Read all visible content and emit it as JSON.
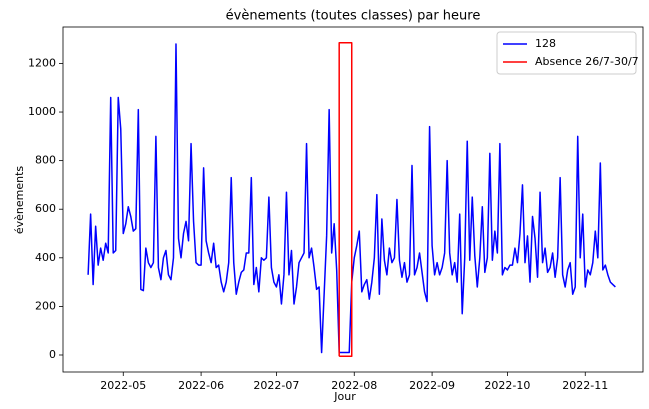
{
  "chart_data": {
    "type": "line",
    "title": "évènements (toutes classes) par heure",
    "xlabel": "Jour",
    "ylabel": "évènements",
    "xlim": [
      "2022-04-07",
      "2022-11-24"
    ],
    "xticks": [
      {
        "value": "2022-05-01",
        "label": "2022-05"
      },
      {
        "value": "2022-06-01",
        "label": "2022-06"
      },
      {
        "value": "2022-07-01",
        "label": "2022-07"
      },
      {
        "value": "2022-08-01",
        "label": "2022-08"
      },
      {
        "value": "2022-09-01",
        "label": "2022-09"
      },
      {
        "value": "2022-10-01",
        "label": "2022-10"
      },
      {
        "value": "2022-11-01",
        "label": "2022-11"
      }
    ],
    "ylim": [
      -70,
      1350
    ],
    "yticks": [
      0,
      200,
      400,
      600,
      800,
      1000,
      1200
    ],
    "grid": false,
    "legend": "upper right",
    "x": [
      "2022-04-17",
      "2022-04-18",
      "2022-04-19",
      "2022-04-20",
      "2022-04-21",
      "2022-04-22",
      "2022-04-23",
      "2022-04-24",
      "2022-04-25",
      "2022-04-26",
      "2022-04-27",
      "2022-04-28",
      "2022-04-29",
      "2022-04-30",
      "2022-05-01",
      "2022-05-02",
      "2022-05-03",
      "2022-05-04",
      "2022-05-05",
      "2022-05-06",
      "2022-05-07",
      "2022-05-08",
      "2022-05-09",
      "2022-05-10",
      "2022-05-11",
      "2022-05-12",
      "2022-05-13",
      "2022-05-14",
      "2022-05-15",
      "2022-05-16",
      "2022-05-17",
      "2022-05-18",
      "2022-05-19",
      "2022-05-20",
      "2022-05-21",
      "2022-05-22",
      "2022-05-23",
      "2022-05-24",
      "2022-05-25",
      "2022-05-26",
      "2022-05-27",
      "2022-05-28",
      "2022-05-29",
      "2022-05-30",
      "2022-05-31",
      "2022-06-01",
      "2022-06-02",
      "2022-06-03",
      "2022-06-04",
      "2022-06-05",
      "2022-06-06",
      "2022-06-07",
      "2022-06-08",
      "2022-06-09",
      "2022-06-10",
      "2022-06-11",
      "2022-06-12",
      "2022-06-13",
      "2022-06-14",
      "2022-06-15",
      "2022-06-16",
      "2022-06-17",
      "2022-06-18",
      "2022-06-19",
      "2022-06-20",
      "2022-06-21",
      "2022-06-22",
      "2022-06-23",
      "2022-06-24",
      "2022-06-25",
      "2022-06-26",
      "2022-06-27",
      "2022-06-28",
      "2022-06-29",
      "2022-06-30",
      "2022-07-01",
      "2022-07-02",
      "2022-07-03",
      "2022-07-04",
      "2022-07-05",
      "2022-07-06",
      "2022-07-07",
      "2022-07-08",
      "2022-07-09",
      "2022-07-10",
      "2022-07-11",
      "2022-07-12",
      "2022-07-13",
      "2022-07-14",
      "2022-07-15",
      "2022-07-16",
      "2022-07-17",
      "2022-07-18",
      "2022-07-19",
      "2022-07-20",
      "2022-07-21",
      "2022-07-22",
      "2022-07-23",
      "2022-07-24",
      "2022-07-25",
      "2022-07-26",
      "2022-07-27",
      "2022-07-28",
      "2022-07-29",
      "2022-07-30",
      "2022-07-31",
      "2022-08-01",
      "2022-08-02",
      "2022-08-03",
      "2022-08-04",
      "2022-08-05",
      "2022-08-06",
      "2022-08-07",
      "2022-08-08",
      "2022-08-09",
      "2022-08-10",
      "2022-08-11",
      "2022-08-12",
      "2022-08-13",
      "2022-08-14",
      "2022-08-15",
      "2022-08-16",
      "2022-08-17",
      "2022-08-18",
      "2022-08-19",
      "2022-08-20",
      "2022-08-21",
      "2022-08-22",
      "2022-08-23",
      "2022-08-24",
      "2022-08-25",
      "2022-08-26",
      "2022-08-27",
      "2022-08-28",
      "2022-08-29",
      "2022-08-30",
      "2022-08-31",
      "2022-09-01",
      "2022-09-02",
      "2022-09-03",
      "2022-09-04",
      "2022-09-05",
      "2022-09-06",
      "2022-09-07",
      "2022-09-08",
      "2022-09-09",
      "2022-09-10",
      "2022-09-11",
      "2022-09-12",
      "2022-09-13",
      "2022-09-14",
      "2022-09-15",
      "2022-09-16",
      "2022-09-17",
      "2022-09-18",
      "2022-09-19",
      "2022-09-20",
      "2022-09-21",
      "2022-09-22",
      "2022-09-23",
      "2022-09-24",
      "2022-09-25",
      "2022-09-26",
      "2022-09-27",
      "2022-09-28",
      "2022-09-29",
      "2022-09-30",
      "2022-10-01",
      "2022-10-02",
      "2022-10-03",
      "2022-10-04",
      "2022-10-05",
      "2022-10-06",
      "2022-10-07",
      "2022-10-08",
      "2022-10-09",
      "2022-10-10",
      "2022-10-11",
      "2022-10-12",
      "2022-10-13",
      "2022-10-14",
      "2022-10-15",
      "2022-10-16",
      "2022-10-17",
      "2022-10-18",
      "2022-10-19",
      "2022-10-20",
      "2022-10-21",
      "2022-10-22",
      "2022-10-23",
      "2022-10-24",
      "2022-10-25",
      "2022-10-26",
      "2022-10-27",
      "2022-10-28",
      "2022-10-29",
      "2022-10-30",
      "2022-10-31",
      "2022-11-01",
      "2022-11-02",
      "2022-11-03",
      "2022-11-04",
      "2022-11-05",
      "2022-11-06",
      "2022-11-07",
      "2022-11-08",
      "2022-11-09",
      "2022-11-10",
      "2022-11-11",
      "2022-11-12",
      "2022-11-13"
    ],
    "series": [
      {
        "name": "128",
        "color": "#0000ff",
        "values": [
          330,
          580,
          290,
          530,
          370,
          440,
          390,
          460,
          420,
          1060,
          420,
          430,
          1060,
          930,
          500,
          540,
          610,
          570,
          510,
          520,
          1010,
          270,
          265,
          440,
          380,
          360,
          380,
          900,
          360,
          310,
          400,
          430,
          330,
          310,
          400,
          1280,
          480,
          400,
          500,
          550,
          470,
          870,
          550,
          380,
          370,
          370,
          770,
          470,
          420,
          380,
          460,
          360,
          370,
          300,
          260,
          300,
          380,
          730,
          380,
          250,
          300,
          340,
          350,
          420,
          420,
          730,
          290,
          360,
          260,
          400,
          390,
          400,
          650,
          360,
          300,
          280,
          330,
          210,
          330,
          670,
          330,
          430,
          210,
          280,
          380,
          400,
          420,
          870,
          400,
          440,
          360,
          270,
          280,
          10,
          250,
          490,
          1010,
          420,
          540,
          350,
          10,
          10,
          10,
          10,
          10,
          300,
          400,
          450,
          510,
          260,
          290,
          310,
          230,
          300,
          400,
          660,
          250,
          560,
          390,
          330,
          440,
          380,
          400,
          640,
          390,
          320,
          380,
          300,
          330,
          780,
          330,
          360,
          420,
          340,
          260,
          220,
          940,
          450,
          330,
          380,
          330,
          360,
          420,
          800,
          420,
          330,
          380,
          300,
          580,
          170,
          400,
          880,
          390,
          650,
          410,
          280,
          400,
          610,
          340,
          400,
          830,
          390,
          510,
          420,
          870,
          330,
          360,
          350,
          370,
          370,
          440,
          380,
          500,
          700,
          380,
          490,
          300,
          570,
          480,
          320,
          670,
          380,
          440,
          340,
          360,
          420,
          320,
          400,
          730,
          330,
          280,
          350,
          380,
          250,
          280,
          900,
          400,
          580,
          280,
          350,
          330,
          380,
          510,
          400,
          790,
          350,
          370,
          330,
          300,
          290,
          280
        ]
      },
      {
        "name": "Absence 26/7-30/7",
        "color": "#ff0000",
        "x": [
          "2022-07-26",
          "2022-07-26",
          "2022-07-31",
          "2022-07-31",
          "2022-07-26"
        ],
        "values": [
          -5,
          1285,
          1285,
          -5,
          -5
        ]
      }
    ]
  }
}
